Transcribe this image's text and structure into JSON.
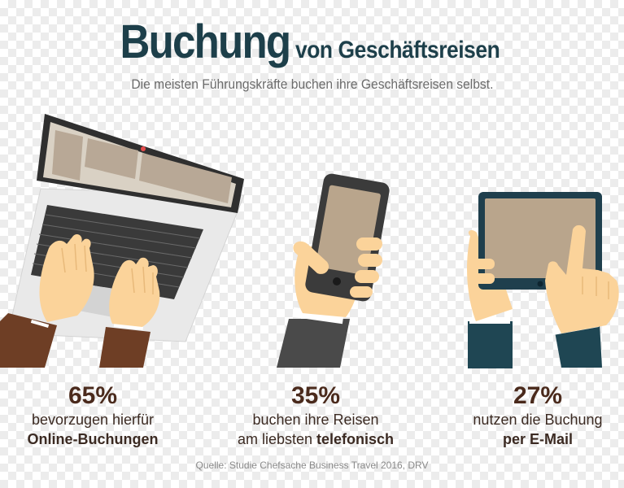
{
  "title": {
    "main": "Buchung",
    "sub": "von Geschäftsreisen"
  },
  "subtitle": "Die meisten Führungskräfte buchen ihre Geschäftsreisen selbst.",
  "stats": [
    {
      "percent": "65%",
      "line1": "bevorzugen hierfür",
      "line2_strong": "Online-Buchungen",
      "line2_plain": ""
    },
    {
      "percent": "35%",
      "line1": "buchen ihre Reisen",
      "line2_plain": "am liebsten ",
      "line2_strong": "telefonisch"
    },
    {
      "percent": "27%",
      "line1": "nutzen die Buchung",
      "line2_strong": "per E-Mail",
      "line2_plain": ""
    }
  ],
  "source": "Quelle: Studie Chefsache Business Travel 2016, DRV",
  "icons": [
    "laptop-icon",
    "smartphone-icon",
    "tablet-icon"
  ],
  "colors": {
    "title": "#1d3f4a",
    "percent": "#4a2a1c",
    "sleeve_brown": "#6e3e25",
    "sleeve_navy": "#1f4653",
    "sleeve_grey": "#4a4a4a",
    "skin": "#fbd39a",
    "screen": "#b9a58c"
  }
}
